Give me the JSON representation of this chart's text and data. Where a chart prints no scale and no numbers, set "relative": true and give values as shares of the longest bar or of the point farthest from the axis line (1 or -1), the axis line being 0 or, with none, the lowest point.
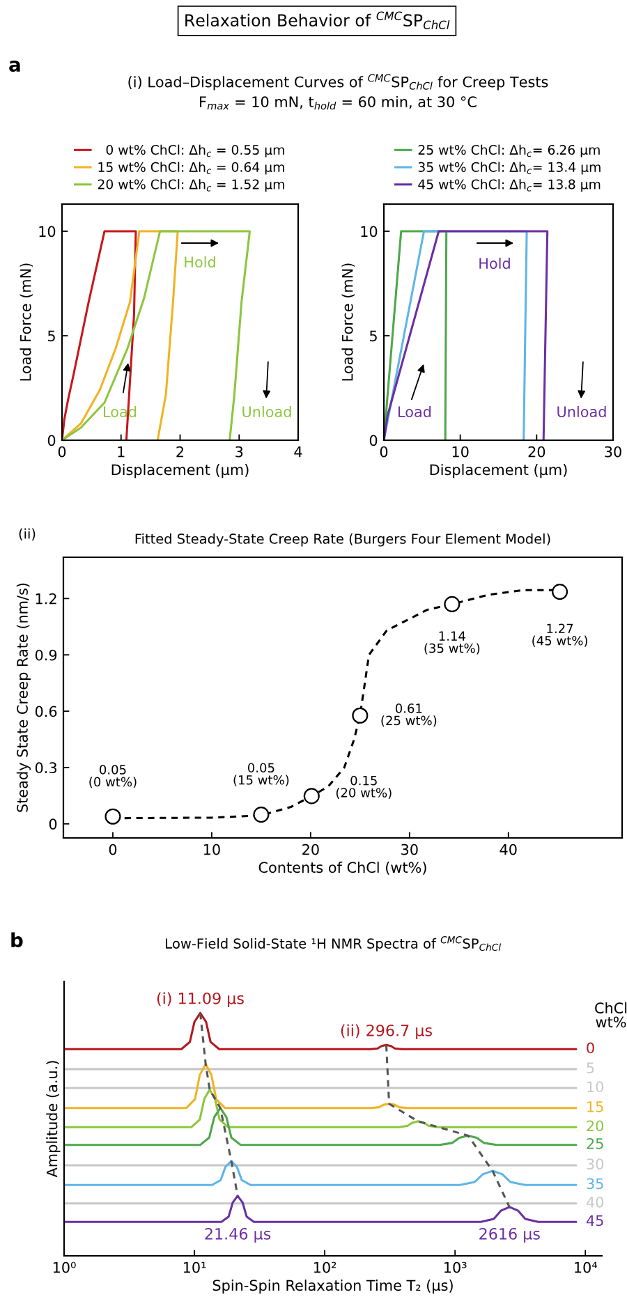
{
  "chart_data": [
    {
      "type": "line",
      "title": "(i) Load–Displacement Curves of $^{CMC}$SP$_{ChCl}$ for Creep Tests",
      "subtitle": "F$_{max}$ = 10 mN, t$_{hold}$ = 60 min, at 30 °C",
      "xlabel": "Displacement (μm)",
      "ylabel": "Load Force (mN)",
      "xlim": [
        0,
        4
      ],
      "ylim": [
        0,
        11.3
      ],
      "xticks": [
        0,
        1,
        2,
        3,
        4
      ],
      "yticks": [
        0,
        5,
        10
      ],
      "legend": "top",
      "series": [
        {
          "name": "  0 wt% ChCl: Δh$_{c}$ = 0.55 μm",
          "color": "#c8161d",
          "x": [
            0,
            0.04,
            0.1,
            0.2,
            0.45,
            0.72,
            1.25,
            1.22,
            1.09
          ],
          "values": [
            0,
            1,
            1.9,
            3.2,
            6.6,
            10,
            10,
            6,
            0
          ]
        },
        {
          "name": "15 wt% ChCl: Δh$_{c}$ = 0.64 μm",
          "color": "#f0b323",
          "x": [
            0,
            0.32,
            0.64,
            0.91,
            1.15,
            1.31,
            1.96,
            1.88,
            1.76,
            1.62
          ],
          "values": [
            0,
            0.8,
            2.4,
            4.4,
            6.6,
            10,
            10,
            6.6,
            2.2,
            0
          ]
        },
        {
          "name": "20 wt% ChCl: Δh$_{c}$ = 1.52 μm",
          "color": "#8cc63e",
          "x": [
            0,
            0.32,
            0.72,
            1.11,
            1.39,
            1.66,
            3.18,
            3.04,
            2.92,
            2.84
          ],
          "values": [
            0,
            0.6,
            1.8,
            4.4,
            6.8,
            10,
            10,
            6.6,
            2.2,
            0
          ]
        }
      ],
      "annotations": [
        "Relaxation Behavior of $^{CMC}$SP$_{ChCl}$",
        "a",
        "Hold",
        {
          "text": "Load",
          "x": 1.12,
          "y": 3.7
        },
        "Unload"
      ]
    },
    {
      "type": "line",
      "xlabel": "Displacement (μm)",
      "ylabel": "Load Force (mN)",
      "xlim": [
        0,
        30
      ],
      "ylim": [
        0,
        11.3
      ],
      "xticks": [
        0,
        10,
        20,
        30
      ],
      "yticks": [
        0,
        5,
        10
      ],
      "legend": "top",
      "series": [
        {
          "name": "25 wt% ChCl: Δh$_{c}$= 6.26 μm",
          "color": "#4ea84a",
          "x": [
            0,
            2.26,
            8.18,
            8.04
          ],
          "values": [
            0,
            10,
            10,
            0
          ]
        },
        {
          "name": "35 wt% ChCl: Δh$_{c}$= 13.4 μm",
          "color": "#5eb5e8",
          "x": [
            0,
            5.25,
            18.7,
            18.3
          ],
          "values": [
            0,
            10,
            10,
            0
          ]
        },
        {
          "name": "45 wt% ChCl: Δh$_{c}$= 13.8 μm",
          "color": "#6b2fa3",
          "x": [
            0,
            0.5,
            7.18,
            21.4,
            20.9
          ],
          "values": [
            0,
            1.2,
            10,
            10,
            0
          ]
        }
      ],
      "annotations": [
        "Hold",
        "Load",
        "Unload"
      ]
    },
    {
      "type": "scatter",
      "title": "Fitted Steady-State Creep Rate (Burgers Four Element Model)",
      "xlabel": "Contents of ChCl (wt%)",
      "ylabel": "Steady State Creep Rate (nm/s)",
      "xlim": [
        -5,
        51.5
      ],
      "ylim": [
        -0.075,
        1.42
      ],
      "xticks": [
        0,
        10,
        20,
        30,
        40
      ],
      "yticks": [
        0,
        0.3,
        0.6,
        0.9,
        1.2
      ],
      "series": [
        {
          "type": "line",
          "line_style": "dashed",
          "color": "#000000",
          "x": [
            0,
            10,
            15,
            18,
            20.2,
            21.8,
            23.4,
            24.4,
            25,
            25.4,
            25.9,
            27.7,
            31.8,
            34.3,
            38,
            41.5,
            45
          ],
          "values": [
            0.03,
            0.033,
            0.045,
            0.09,
            0.15,
            0.2,
            0.3,
            0.45,
            0.58,
            0.72,
            0.9,
            1.03,
            1.14,
            1.17,
            1.22,
            1.245,
            1.245
          ]
        },
        {
          "type": "scatter",
          "marker": "circle",
          "color": "#000000",
          "x": [
            0,
            15,
            20.1,
            25,
            34.3,
            45.2
          ],
          "values": [
            0.039,
            0.049,
            0.148,
            0.577,
            1.17,
            1.236
          ],
          "value_labels": [
            "0.05\n(0 wt%)",
            "0.05\n(15 wt%)",
            "0.15\n(20 wt%)",
            "0.61\n(25 wt%)",
            "1.14\n(35 wt%)",
            "1.27\n(45 wt%)"
          ]
        }
      ],
      "annotations": [
        "(ii)"
      ]
    },
    {
      "type": "line",
      "relative": true,
      "log": "x",
      "title": "Low-Field Solid-State ¹H NMR Spectra of $^{CMC}$SP$_{ChCl}$",
      "xlabel": "Spin-Spin Relaxation Time T₂ (μs)",
      "ylabel": "Amplitude (a.u.)",
      "xlim": [
        1,
        13400
      ],
      "xticks": [
        {
          "value": 1,
          "label": "10⁰"
        },
        {
          "value": 10,
          "label": "10¹"
        },
        {
          "value": 100,
          "label": "10²"
        },
        {
          "value": 1000,
          "label": "10³"
        },
        {
          "value": 10000,
          "label": "10⁴"
        }
      ],
      "legend_title": "ChCl\nwt%",
      "series": [
        {
          "name": "0",
          "color": "#b5181e",
          "x": [
            1,
            7.94,
            9.23,
            10.0,
            11.09,
            12.3,
            13.3,
            15.5,
            225,
            255,
            273,
            296.7,
            322,
            345,
            391,
            8500
          ],
          "values": [
            0.851,
            0.851,
            0.881,
            0.963,
            1.0,
            0.963,
            0.881,
            0.851,
            0.851,
            0.854,
            0.864,
            0.868,
            0.864,
            0.854,
            0.851,
            0.851
          ]
        },
        {
          "name": "5",
          "color": "#c8c8c8",
          "x": [
            1,
            8500
          ],
          "values": [
            0.769,
            0.769
          ]
        },
        {
          "name": "10",
          "color": "#c8c8c8",
          "x": [
            1,
            8500
          ],
          "values": [
            0.691,
            0.691
          ]
        },
        {
          "name": "15",
          "color": "#f0b323",
          "x": [
            1,
            8.69,
            10.1,
            11.0,
            12.2,
            13.5,
            14.7,
            17.1,
            226,
            261,
            283,
            312,
            344,
            372,
            431,
            8500
          ],
          "values": [
            0.609,
            0.609,
            0.645,
            0.745,
            0.79,
            0.745,
            0.645,
            0.609,
            0.609,
            0.612,
            0.622,
            0.626,
            0.622,
            0.612,
            0.609,
            0.609
          ]
        },
        {
          "name": "20",
          "color": "#8cc63e",
          "x": [
            1,
            9.48,
            11.0,
            11.9,
            13.1,
            14.4,
            15.6,
            18.1,
            368,
            430,
            469,
            520,
            577,
            630,
            735,
            8500
          ],
          "values": [
            0.53,
            0.53,
            0.561,
            0.646,
            0.685,
            0.646,
            0.561,
            0.53,
            0.53,
            0.535,
            0.548,
            0.554,
            0.548,
            0.535,
            0.53,
            0.53
          ]
        },
        {
          "name": "25",
          "color": "#4ea84a",
          "x": [
            1,
            11.1,
            13.0,
            14.2,
            15.8,
            17.6,
            19.2,
            22.6,
            759,
            953,
            1081,
            1260,
            1466,
            1663,
            2089,
            8500
          ],
          "values": [
            0.457,
            0.457,
            0.487,
            0.571,
            0.609,
            0.571,
            0.487,
            0.457,
            0.457,
            0.465,
            0.486,
            0.495,
            0.486,
            0.465,
            0.457,
            0.457
          ]
        },
        {
          "name": "30",
          "color": "#c8c8c8",
          "x": [
            1,
            8500
          ],
          "values": [
            0.373,
            0.373
          ]
        },
        {
          "name": "35",
          "color": "#5eb5e8",
          "x": [
            1,
            13.7,
            15.9,
            17.3,
            19.2,
            21.2,
            23.1,
            26.9,
            1091,
            1413,
            1633,
            1940,
            2307,
            2661,
            3451,
            8500
          ],
          "values": [
            0.292,
            0.292,
            0.312,
            0.366,
            0.39,
            0.366,
            0.312,
            0.292,
            0.292,
            0.304,
            0.336,
            0.35,
            0.336,
            0.304,
            0.292,
            0.292
          ]
        },
        {
          "name": "40",
          "color": "#c8c8c8",
          "x": [
            1,
            8500
          ],
          "values": [
            0.216,
            0.216
          ]
        },
        {
          "name": "45",
          "color": "#6b2fa3",
          "x": [
            1,
            16.1,
            18.3,
            19.7,
            21.46,
            23.4,
            25.2,
            28.6,
            1578,
            1982,
            2249,
            2616,
            3048,
            3459,
            4345,
            8500
          ],
          "values": [
            0.14,
            0.14,
            0.161,
            0.22,
            0.247,
            0.22,
            0.161,
            0.14,
            0.14,
            0.152,
            0.186,
            0.201,
            0.186,
            0.152,
            0.14,
            0.14
          ]
        },
        {
          "line_style": "dashed",
          "color": "#555555",
          "x": [
            11.09,
            12.2,
            13.1,
            15.8,
            19.2,
            21.46
          ],
          "values": [
            1.0,
            0.79,
            0.685,
            0.609,
            0.39,
            0.247
          ]
        },
        {
          "line_style": "dashed",
          "color": "#555555",
          "x": [
            296.7,
            312,
            520,
            1260,
            1940,
            2616
          ],
          "values": [
            0.868,
            0.626,
            0.554,
            0.495,
            0.35,
            0.201
          ]
        }
      ],
      "annotations": [
        "b",
        {
          "text": "(i) 11.09 μs",
          "x": 11.09,
          "y": 1.0
        },
        {
          "text": "(ii) 296.7 μs",
          "x": 296.7,
          "y": 0.868
        },
        {
          "text": "21.46 μs",
          "x": 21.46,
          "y": 0.247
        },
        {
          "text": "2616 μs",
          "x": 2616,
          "y": 0.201
        }
      ]
    }
  ]
}
